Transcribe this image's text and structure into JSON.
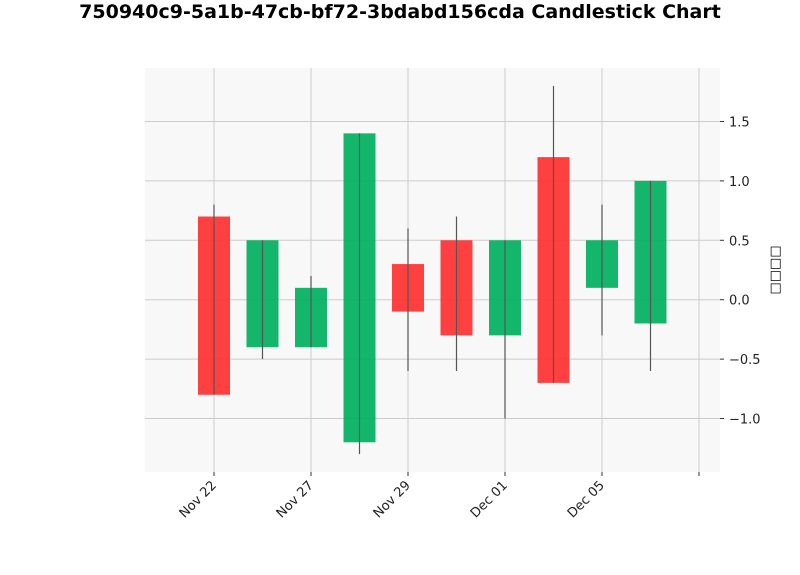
{
  "chart_data": {
    "type": "candlestick",
    "title": "750940c9-5a1b-47cb-bf72-3bdabd156cda Candlestick Chart",
    "ylabel": "□□□□",
    "xlabel": "",
    "ylim": [
      -1.45,
      1.95
    ],
    "y_ticks": [
      -1.0,
      -0.5,
      0.0,
      0.5,
      1.0,
      1.5
    ],
    "y_tick_labels": [
      "−1.0",
      "−0.5",
      "0.0",
      "0.5",
      "1.0",
      "1.5"
    ],
    "x_tick_labels": [
      "Nov 22",
      "Nov 27",
      "Nov 29",
      "Dec 01",
      "Dec 05",
      ""
    ],
    "grid": true,
    "y_axis_side": "right",
    "colors": {
      "up": "#00b060",
      "down": "#ff3030",
      "wick": "#555555",
      "grid": "#cccccc",
      "plot_bg": "#f8f8f8"
    },
    "candles": [
      {
        "open": 0.7,
        "close": -0.8,
        "high": 0.8,
        "low": -0.8
      },
      {
        "open": -0.4,
        "close": 0.5,
        "high": 0.5,
        "low": -0.5
      },
      {
        "open": -0.4,
        "close": 0.1,
        "high": 0.2,
        "low": -0.4
      },
      {
        "open": -1.2,
        "close": 1.4,
        "high": 1.4,
        "low": -1.3
      },
      {
        "open": 0.3,
        "close": -0.1,
        "high": 0.6,
        "low": -0.6
      },
      {
        "open": 0.5,
        "close": -0.3,
        "high": 0.7,
        "low": -0.6
      },
      {
        "open": -0.3,
        "close": 0.5,
        "high": 0.5,
        "low": -1.0
      },
      {
        "open": 1.2,
        "close": -0.7,
        "high": 1.8,
        "low": -0.7
      },
      {
        "open": 0.1,
        "close": 0.5,
        "high": 0.8,
        "low": -0.3
      },
      {
        "open": -0.2,
        "close": 1.0,
        "high": 1.0,
        "low": -0.6
      }
    ]
  }
}
